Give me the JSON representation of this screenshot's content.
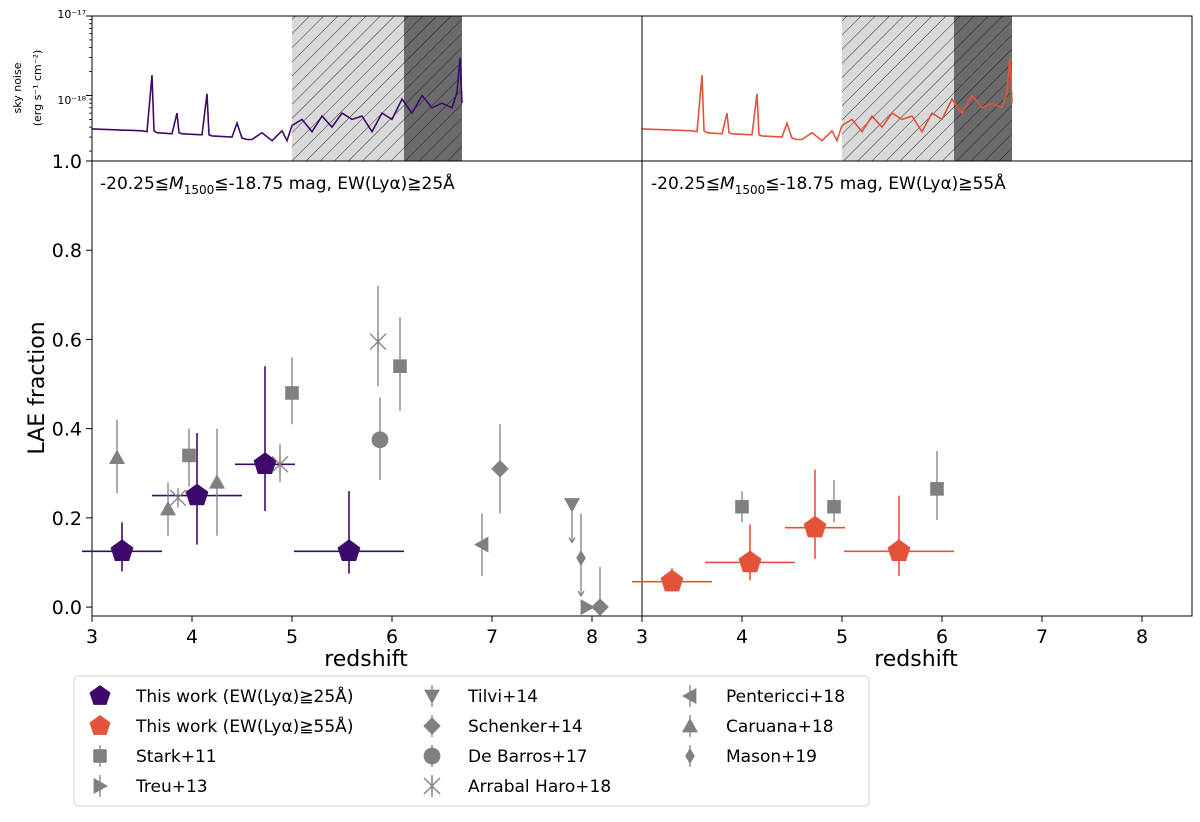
{
  "chart_data": [
    {
      "type": "line",
      "panel": "top-left",
      "title": "",
      "ylabel_line1": "sky noise",
      "ylabel_line2": "(erg s⁻¹ cm⁻²)",
      "yscale": "log",
      "ylim": [
        1.5e-19,
        1e-17
      ],
      "xlim": [
        3,
        8.5
      ],
      "ytick_labels": [
        "10⁻¹⁷",
        "10⁻¹⁸"
      ],
      "color": "#3d0a6b",
      "shaded_regions": [
        {
          "x0": 5.0,
          "x1": 6.12,
          "style": "light-hatched"
        },
        {
          "x0": 6.12,
          "x1": 6.7,
          "style": "dark-hatched"
        }
      ],
      "x": [
        3.0,
        3.5,
        3.55,
        3.6,
        3.62,
        3.65,
        3.8,
        3.85,
        3.87,
        3.9,
        4.1,
        4.15,
        4.17,
        4.2,
        4.4,
        4.45,
        4.5,
        4.55,
        4.6,
        4.7,
        4.8,
        4.9,
        4.95,
        5.0,
        5.1,
        5.2,
        5.3,
        5.4,
        5.5,
        5.6,
        5.7,
        5.8,
        5.9,
        6.0,
        6.1,
        6.2,
        6.3,
        6.4,
        6.5,
        6.6,
        6.65,
        6.68,
        6.7
      ],
      "values": [
        3.8e-19,
        3.6e-19,
        3.5e-19,
        1.8e-18,
        3.6e-19,
        3.4e-19,
        3.3e-19,
        6e-19,
        3.4e-19,
        3.3e-19,
        3.2e-19,
        1.05e-18,
        3.2e-19,
        3.1e-19,
        3e-19,
        4.5e-19,
        2.9e-19,
        2.8e-19,
        2.8e-19,
        3.4e-19,
        2.7e-19,
        3.6e-19,
        2.7e-19,
        4.2e-19,
        5e-19,
        3.5e-19,
        5.5e-19,
        4e-19,
        6e-19,
        5e-19,
        5.5e-19,
        3.5e-19,
        6e-19,
        5e-19,
        9e-19,
        6e-19,
        1e-18,
        7e-19,
        8e-19,
        7e-19,
        1.1e-18,
        3e-18,
        8e-19
      ]
    },
    {
      "type": "line",
      "panel": "top-right",
      "yscale": "log",
      "ylim": [
        1.5e-19,
        1e-17
      ],
      "xlim": [
        3,
        8.5
      ],
      "color": "#e2533a",
      "shaded_regions": [
        {
          "x0": 5.0,
          "x1": 6.12,
          "style": "light-hatched"
        },
        {
          "x0": 6.12,
          "x1": 6.7,
          "style": "dark-hatched"
        }
      ],
      "x": [
        3.0,
        3.5,
        3.55,
        3.6,
        3.62,
        3.65,
        3.8,
        3.85,
        3.87,
        3.9,
        4.1,
        4.15,
        4.17,
        4.2,
        4.4,
        4.45,
        4.5,
        4.55,
        4.6,
        4.7,
        4.8,
        4.9,
        4.95,
        5.0,
        5.1,
        5.2,
        5.3,
        5.4,
        5.5,
        5.6,
        5.7,
        5.8,
        5.9,
        6.0,
        6.1,
        6.2,
        6.3,
        6.4,
        6.5,
        6.6,
        6.65,
        6.68,
        6.7
      ],
      "values": [
        3.8e-19,
        3.6e-19,
        3.5e-19,
        1.8e-18,
        3.6e-19,
        3.4e-19,
        3.3e-19,
        6e-19,
        3.4e-19,
        3.3e-19,
        3.2e-19,
        1.05e-18,
        3.2e-19,
        3.1e-19,
        3e-19,
        4.5e-19,
        2.9e-19,
        2.8e-19,
        2.8e-19,
        3.4e-19,
        2.7e-19,
        3.6e-19,
        2.7e-19,
        4.2e-19,
        5e-19,
        3.5e-19,
        5.5e-19,
        4e-19,
        6e-19,
        5e-19,
        5.5e-19,
        3.5e-19,
        6e-19,
        5e-19,
        9e-19,
        6e-19,
        1e-18,
        7e-19,
        8e-19,
        7e-19,
        1.1e-18,
        3e-18,
        8e-19
      ]
    },
    {
      "type": "scatter",
      "panel": "bottom-left",
      "annotation": "-20.25≦M1500≦-18.75 mag, EW(Lyα)≧25Å",
      "annotation_parts": {
        "pre": "-20.25≦",
        "m": "M",
        "sub": "1500",
        "post": "≦-18.75 mag, EW(Lyα)≧25Å"
      },
      "xlabel": "redshift",
      "ylabel": "LAE fraction",
      "xlim": [
        3,
        8.5
      ],
      "ylim": [
        -0.02,
        1.0
      ],
      "x_ticks": [
        3,
        4,
        5,
        6,
        7,
        8
      ],
      "y_ticks": [
        "0.0",
        "0.2",
        "0.4",
        "0.6",
        "0.8",
        "1.0"
      ],
      "series": [
        {
          "name": "This work (EW(Lyα)≧25Å)",
          "marker": "pentagon",
          "color": "#3d0a6b",
          "points": [
            {
              "x": 3.3,
              "y": 0.125,
              "xerr": [
                0.4,
                0.4
              ],
              "yerr": [
                0.045,
                0.065
              ]
            },
            {
              "x": 4.05,
              "y": 0.25,
              "xerr": [
                0.45,
                0.45
              ],
              "yerr": [
                0.11,
                0.14
              ]
            },
            {
              "x": 4.73,
              "y": 0.32,
              "xerr": [
                0.3,
                0.3
              ],
              "yerr": [
                0.105,
                0.22
              ]
            },
            {
              "x": 5.57,
              "y": 0.125,
              "xerr": [
                0.55,
                0.55
              ],
              "yerr": [
                0.05,
                0.135
              ]
            }
          ]
        },
        {
          "name": "Stark+11",
          "marker": "square",
          "color": "#808080",
          "points": [
            {
              "x": 3.97,
              "y": 0.34,
              "yerr": [
                0.07,
                0.06
              ]
            },
            {
              "x": 5.0,
              "y": 0.48,
              "yerr": [
                0.07,
                0.08
              ]
            },
            {
              "x": 6.08,
              "y": 0.54,
              "yerr": [
                0.1,
                0.11
              ]
            }
          ]
        },
        {
          "name": "Treu+13",
          "marker": "triangle-right",
          "color": "#808080",
          "points": [
            {
              "x": 7.95,
              "y": 0.0,
              "yerr": [
                0,
                0
              ]
            }
          ]
        },
        {
          "name": "Tilvi+14",
          "marker": "triangle-down",
          "color": "#808080",
          "points": [
            {
              "x": 7.8,
              "y": 0.23,
              "yerr": [
                0,
                0
              ],
              "upper_limit": true
            }
          ]
        },
        {
          "name": "Schenker+14",
          "marker": "diamond",
          "color": "#808080",
          "points": [
            {
              "x": 7.08,
              "y": 0.31,
              "yerr": [
                0.1,
                0.1
              ]
            },
            {
              "x": 8.08,
              "y": 0.0,
              "yerr": [
                0.0,
                0.09
              ]
            }
          ]
        },
        {
          "name": "De Barros+17",
          "marker": "circle",
          "color": "#808080",
          "points": [
            {
              "x": 5.88,
              "y": 0.375,
              "yerr": [
                0.09,
                0.095
              ]
            }
          ]
        },
        {
          "name": "Arrabal Haro+18",
          "marker": "x",
          "color": "#808080",
          "points": [
            {
              "x": 3.86,
              "y": 0.245,
              "yerr": [
                0,
                0
              ]
            },
            {
              "x": 4.88,
              "y": 0.32,
              "yerr": [
                0.04,
                0.045
              ]
            },
            {
              "x": 5.86,
              "y": 0.595,
              "yerr": [
                0.1,
                0.125
              ]
            }
          ]
        },
        {
          "name": "Pentericci+18",
          "marker": "triangle-left",
          "color": "#808080",
          "points": [
            {
              "x": 6.9,
              "y": 0.14,
              "yerr": [
                0.07,
                0.07
              ]
            }
          ]
        },
        {
          "name": "Caruana+18",
          "marker": "triangle-up",
          "color": "#808080",
          "points": [
            {
              "x": 3.25,
              "y": 0.335,
              "yerr": [
                0.08,
                0.085
              ]
            },
            {
              "x": 3.76,
              "y": 0.22,
              "yerr": [
                0.06,
                0.06
              ]
            },
            {
              "x": 4.25,
              "y": 0.28,
              "yerr": [
                0.12,
                0.12
              ]
            }
          ]
        },
        {
          "name": "Mason+19",
          "marker": "thin-diamond",
          "color": "#808080",
          "points": [
            {
              "x": 7.89,
              "y": 0.11,
              "yerr": [
                0,
                0.1
              ],
              "upper_limit": true
            }
          ]
        }
      ]
    },
    {
      "type": "scatter",
      "panel": "bottom-right",
      "annotation": "-20.25≦M1500≦-18.75 mag, EW(Lyα)≧55Å",
      "annotation_parts": {
        "pre": "-20.25≦",
        "m": "M",
        "sub": "1500",
        "post": "≦-18.75 mag, EW(Lyα)≧55Å"
      },
      "xlabel": "redshift",
      "xlim": [
        3,
        8.5
      ],
      "ylim": [
        -0.02,
        1.0
      ],
      "x_ticks": [
        3,
        4,
        5,
        6,
        7,
        8
      ],
      "series": [
        {
          "name": "This work (EW(Lyα)≧55Å)",
          "marker": "pentagon",
          "color": "#e2533a",
          "points": [
            {
              "x": 3.3,
              "y": 0.057,
              "xerr": [
                0.4,
                0.4
              ],
              "yerr": [
                0.02,
                0.03
              ]
            },
            {
              "x": 4.08,
              "y": 0.1,
              "xerr": [
                0.45,
                0.45
              ],
              "yerr": [
                0.04,
                0.085
              ]
            },
            {
              "x": 4.73,
              "y": 0.178,
              "xerr": [
                0.3,
                0.3
              ],
              "yerr": [
                0.07,
                0.13
              ]
            },
            {
              "x": 5.57,
              "y": 0.125,
              "xerr": [
                0.55,
                0.55
              ],
              "yerr": [
                0.055,
                0.125
              ]
            }
          ]
        },
        {
          "name": "Stark+11",
          "marker": "square",
          "color": "#808080",
          "points": [
            {
              "x": 4.0,
              "y": 0.225,
              "yerr": [
                0.035,
                0.035
              ]
            },
            {
              "x": 4.92,
              "y": 0.225,
              "yerr": [
                0.035,
                0.06
              ]
            },
            {
              "x": 5.95,
              "y": 0.265,
              "yerr": [
                0.07,
                0.085
              ]
            }
          ]
        }
      ]
    }
  ],
  "legend": {
    "placement": "bottom",
    "items": [
      {
        "label": "This work (EW(Lyα)≧25Å)",
        "marker": "pentagon",
        "color": "#3d0a6b"
      },
      {
        "label": "This work (EW(Lyα)≧55Å)",
        "marker": "pentagon",
        "color": "#e2533a"
      },
      {
        "label": "Stark+11",
        "marker": "square",
        "color": "#808080"
      },
      {
        "label": "Treu+13",
        "marker": "triangle-right",
        "color": "#808080"
      },
      {
        "label": "Tilvi+14",
        "marker": "triangle-down",
        "color": "#808080"
      },
      {
        "label": "Schenker+14",
        "marker": "diamond",
        "color": "#808080"
      },
      {
        "label": "De Barros+17",
        "marker": "circle",
        "color": "#808080"
      },
      {
        "label": "Arrabal Haro+18",
        "marker": "x",
        "color": "#808080"
      },
      {
        "label": "Pentericci+18",
        "marker": "triangle-left",
        "color": "#808080"
      },
      {
        "label": "Caruana+18",
        "marker": "triangle-up",
        "color": "#808080"
      },
      {
        "label": "Mason+19",
        "marker": "thin-diamond",
        "color": "#808080"
      }
    ]
  }
}
